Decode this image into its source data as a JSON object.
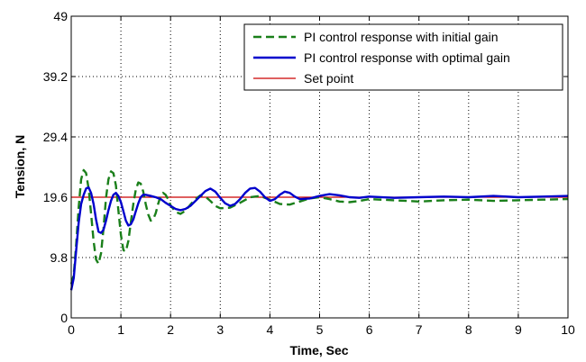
{
  "chart_data": {
    "type": "line",
    "xlabel": "Time, Sec",
    "ylabel": "Tension, N",
    "xlim": [
      0,
      10
    ],
    "ylim": [
      0,
      49
    ],
    "xticks": [
      "0",
      "1",
      "2",
      "3",
      "4",
      "5",
      "6",
      "7",
      "8",
      "9",
      "10"
    ],
    "yticks": [
      "0",
      "9.8",
      "19.6",
      "29.4",
      "39.2",
      "49"
    ],
    "xtick_values": [
      0,
      1,
      2,
      3,
      4,
      5,
      6,
      7,
      8,
      9,
      10
    ],
    "ytick_values": [
      0,
      9.8,
      19.6,
      29.4,
      39.2,
      49
    ],
    "grid": true,
    "legend_position": "top-right",
    "series": [
      {
        "name": "PI control response with initial gain",
        "color": "#1a7f1a",
        "style": "dashed",
        "x": [
          0,
          0.05,
          0.1,
          0.15,
          0.2,
          0.25,
          0.3,
          0.35,
          0.4,
          0.45,
          0.5,
          0.55,
          0.6,
          0.65,
          0.7,
          0.75,
          0.8,
          0.85,
          0.9,
          0.95,
          1.0,
          1.05,
          1.1,
          1.15,
          1.2,
          1.25,
          1.3,
          1.35,
          1.4,
          1.45,
          1.5,
          1.55,
          1.6,
          1.65,
          1.7,
          1.75,
          1.8,
          1.85,
          1.9,
          1.95,
          2.0,
          2.1,
          2.2,
          2.3,
          2.4,
          2.5,
          2.6,
          2.7,
          2.8,
          2.9,
          3.0,
          3.2,
          3.4,
          3.6,
          3.8,
          4.0,
          4.2,
          4.4,
          4.6,
          4.8,
          5.0,
          5.2,
          5.4,
          5.6,
          5.8,
          6.0,
          6.5,
          7.0,
          7.5,
          8.0,
          8.5,
          9.0,
          9.5,
          10.0
        ],
        "y": [
          5.5,
          7.0,
          12.0,
          18.0,
          22.5,
          24.0,
          23.5,
          21.0,
          17.0,
          12.5,
          9.5,
          8.8,
          10.5,
          14.5,
          19.5,
          22.5,
          23.8,
          23.5,
          21.5,
          17.5,
          13.5,
          11.0,
          10.8,
          12.5,
          15.5,
          18.5,
          20.8,
          22.0,
          21.8,
          20.5,
          18.5,
          16.8,
          15.8,
          16.0,
          17.0,
          18.5,
          19.8,
          20.3,
          20.0,
          19.3,
          18.3,
          17.2,
          16.9,
          17.4,
          18.4,
          19.3,
          19.9,
          19.7,
          19.0,
          18.2,
          17.8,
          17.9,
          18.7,
          19.6,
          19.8,
          19.2,
          18.5,
          18.4,
          18.9,
          19.4,
          19.6,
          19.3,
          18.9,
          18.8,
          19.0,
          19.3,
          19.1,
          18.9,
          19.1,
          19.2,
          19.0,
          19.1,
          19.2,
          19.3
        ]
      },
      {
        "name": "PI control response with optimal gain",
        "color": "#0000cc",
        "style": "solid",
        "x": [
          0,
          0.05,
          0.1,
          0.15,
          0.2,
          0.25,
          0.3,
          0.35,
          0.4,
          0.45,
          0.5,
          0.55,
          0.6,
          0.65,
          0.7,
          0.75,
          0.8,
          0.85,
          0.9,
          0.95,
          1.0,
          1.05,
          1.1,
          1.15,
          1.2,
          1.25,
          1.3,
          1.35,
          1.4,
          1.45,
          1.5,
          1.55,
          1.6,
          1.65,
          1.7,
          1.8,
          1.9,
          2.0,
          2.1,
          2.2,
          2.3,
          2.4,
          2.5,
          2.6,
          2.7,
          2.8,
          2.9,
          3.0,
          3.1,
          3.2,
          3.3,
          3.4,
          3.5,
          3.6,
          3.7,
          3.8,
          3.9,
          4.0,
          4.1,
          4.2,
          4.3,
          4.4,
          4.5,
          4.6,
          4.8,
          5.0,
          5.2,
          5.4,
          5.6,
          5.8,
          6.0,
          6.5,
          7.0,
          7.5,
          8.0,
          8.5,
          9.0,
          9.5,
          10.0
        ],
        "y": [
          4.5,
          6.5,
          11.0,
          15.5,
          18.5,
          20.0,
          21.0,
          21.2,
          20.3,
          18.5,
          16.0,
          14.0,
          13.8,
          14.3,
          15.8,
          17.5,
          19.0,
          20.0,
          20.3,
          19.8,
          18.8,
          17.3,
          15.8,
          15.0,
          15.2,
          16.0,
          17.3,
          18.6,
          19.6,
          20.0,
          20.0,
          19.9,
          19.8,
          19.7,
          19.6,
          19.3,
          18.7,
          18.2,
          17.7,
          17.5,
          17.7,
          18.2,
          19.0,
          19.8,
          20.6,
          21.0,
          20.5,
          19.5,
          18.6,
          18.2,
          18.5,
          19.3,
          20.3,
          21.0,
          21.1,
          20.5,
          19.6,
          19.0,
          19.3,
          20.0,
          20.5,
          20.3,
          19.7,
          19.3,
          19.4,
          19.8,
          20.1,
          19.9,
          19.6,
          19.5,
          19.7,
          19.5,
          19.6,
          19.7,
          19.6,
          19.8,
          19.6,
          19.7,
          19.8
        ]
      },
      {
        "name": "Set point",
        "color": "#cc0000",
        "style": "solid",
        "x": [
          0,
          10
        ],
        "y": [
          19.6,
          19.6
        ]
      }
    ]
  }
}
